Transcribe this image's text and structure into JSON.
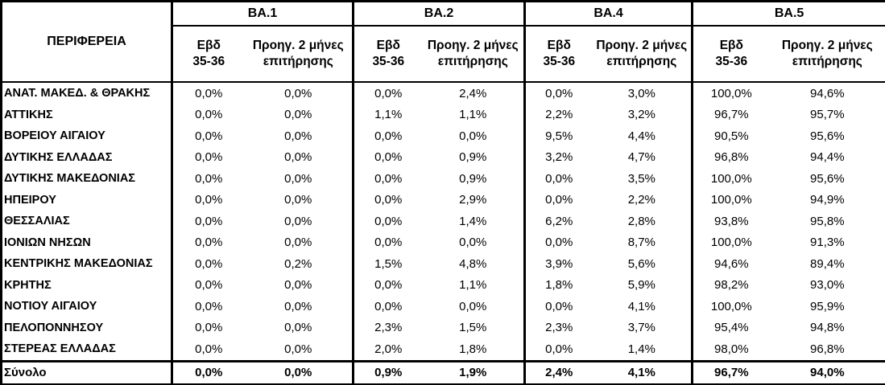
{
  "chart_data": {
    "type": "table",
    "region_column_header": "ΠΕΡΙΦΕΡΕΙΑ",
    "decimal_separator": ",",
    "column_groups": [
      {
        "label": "BA.1",
        "subcolumns": [
          "Εβδ\n35-36",
          "Προηγ. 2 μήνες\nεπιτήρησης"
        ]
      },
      {
        "label": "BA.2",
        "subcolumns": [
          "Εβδ\n35-36",
          "Προηγ. 2 μήνες\nεπιτήρησης"
        ]
      },
      {
        "label": "BA.4",
        "subcolumns": [
          "Εβδ\n35-36",
          "Προηγ. 2 μήνες\nεπιτήρησης"
        ]
      },
      {
        "label": "BA.5",
        "subcolumns": [
          "Εβδ\n35-36",
          "Προηγ. 2 μήνες\nεπιτήρησης"
        ]
      }
    ],
    "rows": [
      {
        "region": "ΑΝΑΤ. ΜΑΚΕΔ. & ΘΡΑΚΗΣ",
        "values": [
          "0,0%",
          "0,0%",
          "0,0%",
          "2,4%",
          "0,0%",
          "3,0%",
          "100,0%",
          "94,6%"
        ]
      },
      {
        "region": "ΑΤΤΙΚΗΣ",
        "values": [
          "0,0%",
          "0,0%",
          "1,1%",
          "1,1%",
          "2,2%",
          "3,2%",
          "96,7%",
          "95,7%"
        ]
      },
      {
        "region": "ΒΟΡΕΙΟΥ ΑΙΓΑΙΟΥ",
        "values": [
          "0,0%",
          "0,0%",
          "0,0%",
          "0,0%",
          "9,5%",
          "4,4%",
          "90,5%",
          "95,6%"
        ]
      },
      {
        "region": "ΔΥΤΙΚΗΣ ΕΛΛΑΔΑΣ",
        "values": [
          "0,0%",
          "0,0%",
          "0,0%",
          "0,9%",
          "3,2%",
          "4,7%",
          "96,8%",
          "94,4%"
        ]
      },
      {
        "region": "ΔΥΤΙΚΗΣ ΜΑΚΕΔΟΝΙΑΣ",
        "values": [
          "0,0%",
          "0,0%",
          "0,0%",
          "0,9%",
          "0,0%",
          "3,5%",
          "100,0%",
          "95,6%"
        ]
      },
      {
        "region": "ΗΠΕΙΡΟΥ",
        "values": [
          "0,0%",
          "0,0%",
          "0,0%",
          "2,9%",
          "0,0%",
          "2,2%",
          "100,0%",
          "94,9%"
        ]
      },
      {
        "region": "ΘΕΣΣΑΛΙΑΣ",
        "values": [
          "0,0%",
          "0,0%",
          "0,0%",
          "1,4%",
          "6,2%",
          "2,8%",
          "93,8%",
          "95,8%"
        ]
      },
      {
        "region": "ΙΟΝΙΩΝ ΝΗΣΩΝ",
        "values": [
          "0,0%",
          "0,0%",
          "0,0%",
          "0,0%",
          "0,0%",
          "8,7%",
          "100,0%",
          "91,3%"
        ]
      },
      {
        "region": "ΚΕΝΤΡΙΚΗΣ ΜΑΚΕΔΟΝΙΑΣ",
        "values": [
          "0,0%",
          "0,2%",
          "1,5%",
          "4,8%",
          "3,9%",
          "5,6%",
          "94,6%",
          "89,4%"
        ]
      },
      {
        "region": "ΚΡΗΤΗΣ",
        "values": [
          "0,0%",
          "0,0%",
          "0,0%",
          "1,1%",
          "1,8%",
          "5,9%",
          "98,2%",
          "93,0%"
        ]
      },
      {
        "region": "ΝΟΤΙΟΥ ΑΙΓΑΙΟΥ",
        "values": [
          "0,0%",
          "0,0%",
          "0,0%",
          "0,0%",
          "0,0%",
          "4,1%",
          "100,0%",
          "95,9%"
        ]
      },
      {
        "region": "ΠΕΛΟΠΟΝΝΗΣΟΥ",
        "values": [
          "0,0%",
          "0,0%",
          "2,3%",
          "1,5%",
          "2,3%",
          "3,7%",
          "95,4%",
          "94,8%"
        ]
      },
      {
        "region": "ΣΤΕΡΕΑΣ ΕΛΛΑΔΑΣ",
        "values": [
          "0,0%",
          "0,0%",
          "2,0%",
          "1,8%",
          "0,0%",
          "1,4%",
          "98,0%",
          "96,8%"
        ]
      }
    ],
    "total": {
      "label": "Σύνολο",
      "values": [
        "0,0%",
        "0,0%",
        "0,9%",
        "1,9%",
        "2,4%",
        "4,1%",
        "96,7%",
        "94,0%"
      ]
    },
    "layout_hints": {
      "grid": "group-separators-only",
      "text_color": "#000000",
      "border_color": "#000000",
      "background": "#ffffff"
    }
  }
}
